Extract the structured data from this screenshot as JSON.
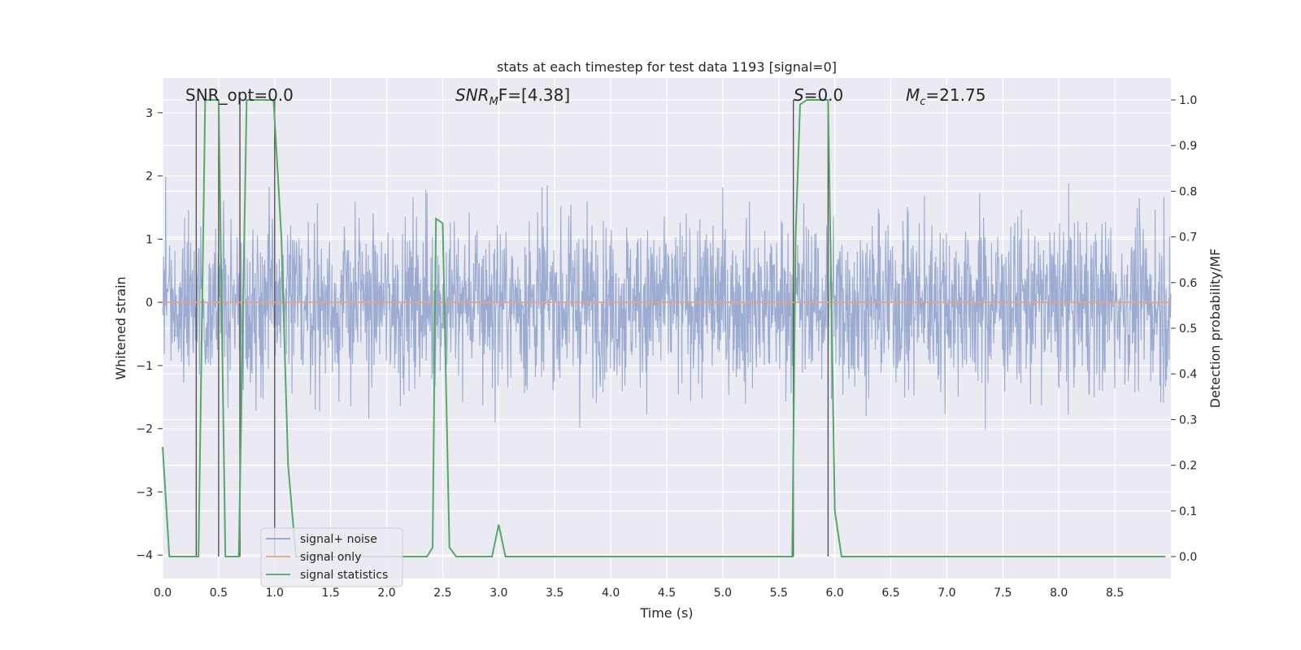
{
  "chart_data": {
    "type": "line",
    "title": "stats at each timestep for test data 1193 [signal=0]",
    "xlabel": "Time (s)",
    "ylabel": "Whitened strain",
    "ylabel_right": "Detection probability/MF",
    "xlim": [
      0.0,
      9.0
    ],
    "ylim": [
      -4.37,
      3.55
    ],
    "ylim_right": [
      -0.048,
      1.048
    ],
    "x_ticks": [
      "0.0",
      "0.5",
      "1.0",
      "1.5",
      "2.0",
      "2.5",
      "3.0",
      "3.5",
      "4.0",
      "4.5",
      "5.0",
      "5.5",
      "6.0",
      "6.5",
      "7.0",
      "7.5",
      "8.0",
      "8.5"
    ],
    "y_ticks": [
      "3",
      "2",
      "1",
      "0",
      "−1",
      "−2",
      "−3",
      "−4"
    ],
    "y_tick_values": [
      3,
      2,
      1,
      0,
      -1,
      -2,
      -3,
      -4
    ],
    "y_right_ticks": [
      "1.0",
      "0.9",
      "0.8",
      "0.7",
      "0.6",
      "0.5",
      "0.4",
      "0.3",
      "0.2",
      "0.1",
      "0.0"
    ],
    "y_right_tick_values": [
      1.0,
      0.9,
      0.8,
      0.7,
      0.6,
      0.5,
      0.4,
      0.3,
      0.2,
      0.1,
      0.0
    ],
    "annotations": {
      "snr_opt": "SNR_opt=0.0",
      "snr_mf_base": "SNR",
      "snr_mf_sub": "M",
      "snr_mf_rest": "F=[4.38]",
      "s_base": "S",
      "s_rest": "=0.0",
      "mc_base": "M",
      "mc_sub": "c",
      "mc_rest": "=21.75"
    },
    "legend": {
      "position": "lower-left",
      "entries": [
        {
          "label": "signal+ noise",
          "color": "#8da0cb"
        },
        {
          "label": "signal only",
          "color": "#e9a27f"
        },
        {
          "label": "signal statistics",
          "color": "#55a868"
        }
      ]
    },
    "series": [
      {
        "name": "signal+ noise",
        "color": "#8da0cb",
        "kind": "noise",
        "x_range": [
          0.0,
          9.0
        ],
        "samples": 2300,
        "approx_range": [
          -4.0,
          3.55
        ]
      },
      {
        "name": "signal only",
        "color": "#e9a27f",
        "x": [
          0.0,
          9.0
        ],
        "y": [
          0.0,
          0.0
        ]
      },
      {
        "name": "signal statistics",
        "color": "#55a868",
        "axis": "right",
        "x": [
          0.0,
          0.06,
          0.3,
          0.32,
          0.38,
          0.5,
          0.56,
          0.62,
          0.68,
          0.75,
          0.99,
          1.06,
          1.12,
          1.19,
          2.36,
          2.41,
          2.44,
          2.5,
          2.56,
          2.62,
          2.94,
          3.0,
          3.06,
          5.62,
          5.65,
          5.69,
          5.75,
          5.94,
          6.0,
          6.06,
          8.95
        ],
        "y": [
          0.24,
          0.0,
          0.0,
          0.0,
          1.0,
          1.0,
          0.0,
          0.0,
          0.0,
          1.0,
          1.0,
          0.7,
          0.2,
          0.0,
          0.0,
          0.02,
          0.74,
          0.73,
          0.02,
          0.0,
          0.0,
          0.07,
          0.0,
          0.0,
          0.7,
          0.99,
          1.0,
          1.0,
          0.1,
          0.0,
          0.0
        ]
      }
    ],
    "vlines": [
      0.3,
      0.5,
      0.69,
      1.0,
      5.63,
      5.94
    ]
  }
}
